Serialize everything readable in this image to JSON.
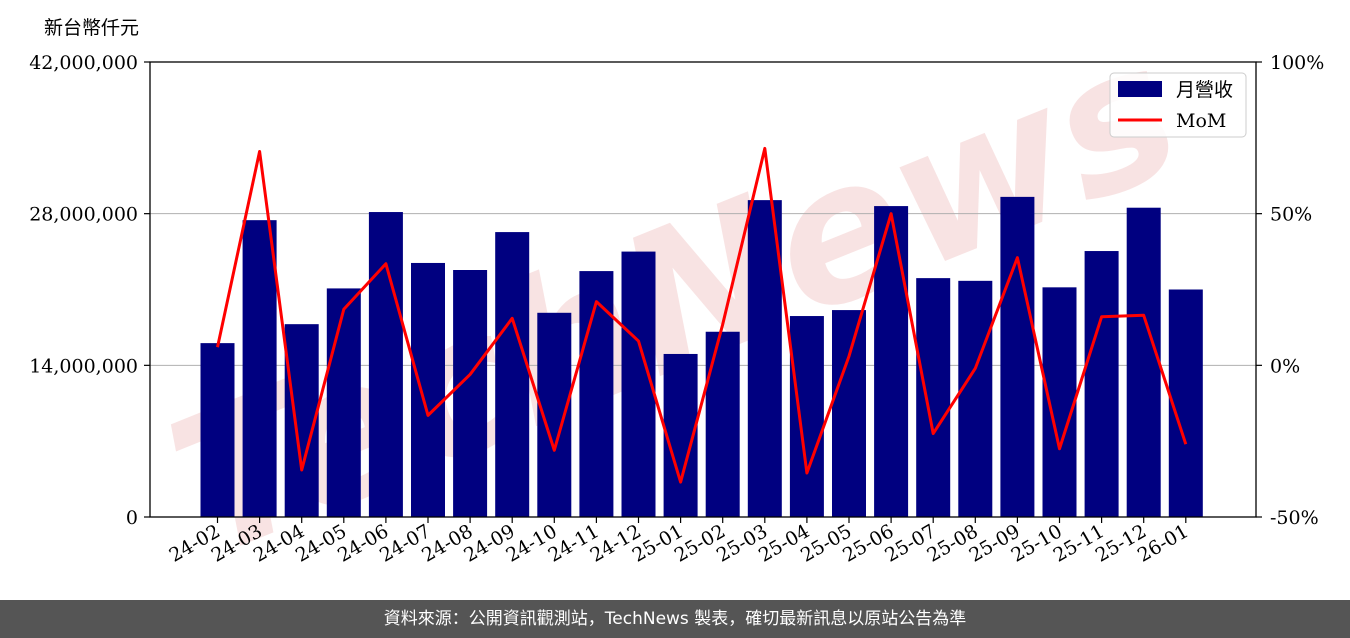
{
  "chart_data": {
    "type": "bar",
    "y_unit_label": "新台幣仟元",
    "categories": [
      "24-02",
      "24-03",
      "24-04",
      "24-05",
      "24-06",
      "24-07",
      "24-08",
      "24-09",
      "24-10",
      "24-11",
      "24-12",
      "25-01",
      "25-02",
      "25-03",
      "25-04",
      "25-05",
      "25-06",
      "25-07",
      "25-08",
      "25-09",
      "25-10",
      "25-11",
      "25-12",
      "26-01"
    ],
    "series": [
      {
        "name": "月營收",
        "type": "bar",
        "axis": "left",
        "color": "#000080",
        "values": [
          16050000,
          27400000,
          17800000,
          21100000,
          28150000,
          23450000,
          22800000,
          26300000,
          18850000,
          22700000,
          24500000,
          15050000,
          17100000,
          29250000,
          18550000,
          19100000,
          28700000,
          22050000,
          21800000,
          29550000,
          21200000,
          24550000,
          28550000,
          21000000
        ]
      },
      {
        "name": "MoM",
        "type": "line",
        "axis": "right",
        "color": "#ff0000",
        "values": [
          6,
          70.5,
          -34.5,
          18.5,
          33.5,
          -16.5,
          -3,
          15.5,
          -28,
          21,
          8,
          -38.5,
          13.5,
          71.5,
          -35.5,
          3,
          50,
          -22.5,
          -1,
          35.5,
          -27.5,
          16,
          16.5,
          -26
        ]
      }
    ],
    "ylim_left": [
      0,
      42000000
    ],
    "yticks_left": [
      "0",
      "14,000,000",
      "28,000,000",
      "42,000,000"
    ],
    "ylim_right": [
      -50,
      100
    ],
    "yticks_right": [
      "-50%",
      "0%",
      "50%",
      "100%"
    ],
    "grid": "horizontal",
    "legend_position": "top-right"
  },
  "footer": {
    "text": "資料來源：公開資訊觀測站，TechNews 製表，確切最新訊息以原站公告為準"
  },
  "watermark": "TechNews"
}
